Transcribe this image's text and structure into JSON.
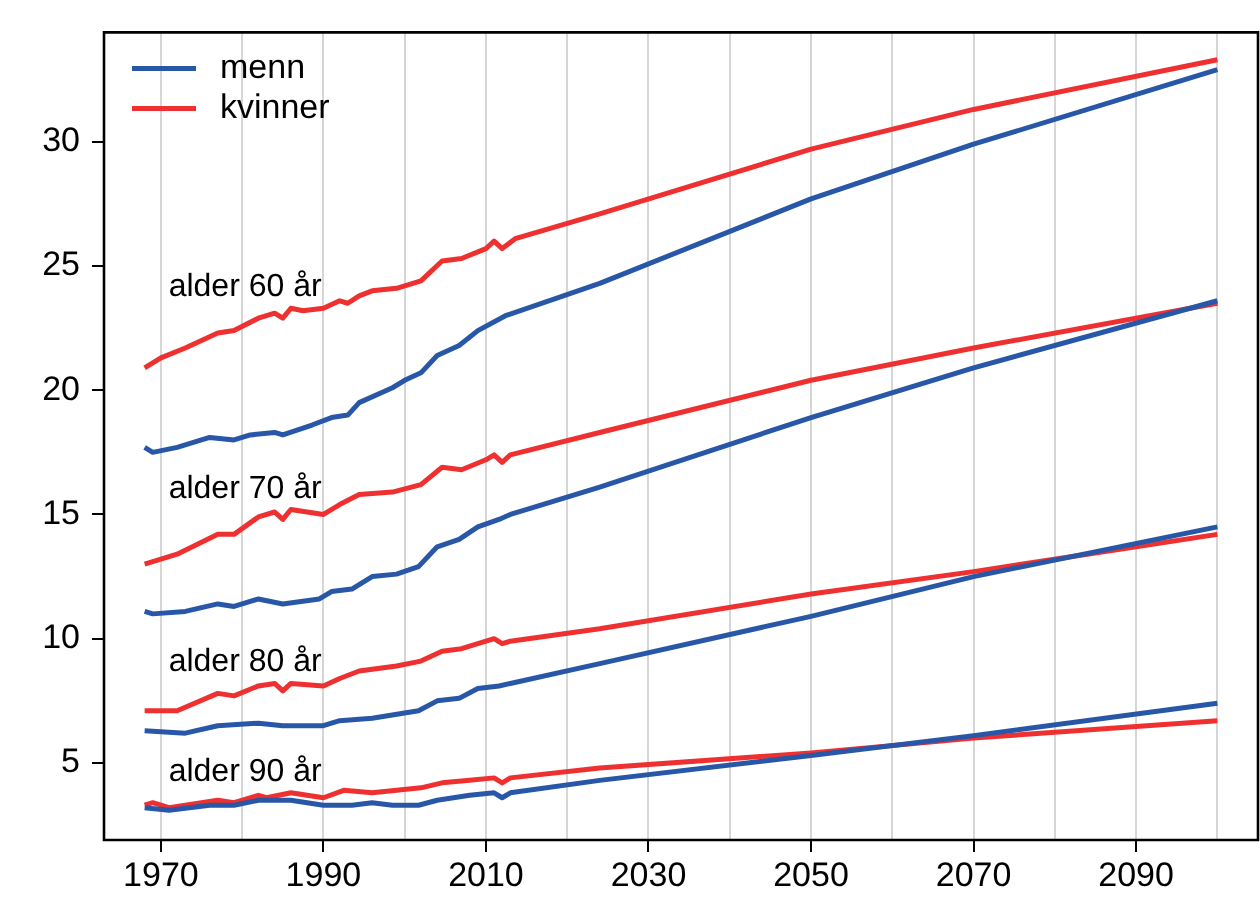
{
  "chart_data": {
    "type": "line",
    "xlim": [
      1963,
      2105
    ],
    "ylim": [
      1.9,
      34.4
    ],
    "xticks": [
      1970,
      {
        "value": 1980,
        "label": null
      },
      1990,
      {
        "value": 2000,
        "label": null
      },
      2010,
      {
        "value": 2020,
        "label": null
      },
      2030,
      {
        "value": 2040,
        "label": null
      },
      2050,
      {
        "value": 2060,
        "label": null
      },
      2070,
      {
        "value": 2080,
        "label": null
      },
      2090,
      {
        "value": 2100,
        "label": null
      }
    ],
    "yticks": [
      5,
      10,
      15,
      20,
      25,
      30
    ],
    "grid": "x",
    "legend": "top left",
    "marker": "none",
    "line_style": "solid",
    "annotations": [
      "alder 60 år",
      "alder 70 år",
      "alder 80 år",
      "alder 90 år"
    ],
    "series": [
      {
        "name": "menn",
        "color": "#2857a8",
        "x": [
          1968,
          1969,
          1972,
          1976,
          1979,
          1981,
          1984,
          1985,
          1988.6,
          1991,
          1993,
          1994.4,
          1998.5,
          2000,
          2002,
          2004,
          2006.7,
          2009,
          2012.4,
          2024,
          2050,
          2070,
          2100
        ],
        "values": [
          17.7,
          17.5,
          17.7,
          18.1,
          18.0,
          18.2,
          18.3,
          18.2,
          18.6,
          18.9,
          19.0,
          19.5,
          20.1,
          20.4,
          20.7,
          21.4,
          21.8,
          22.4,
          23.0,
          24.3,
          27.7,
          29.9,
          32.9
        ]
      },
      {
        "name": "kvinner",
        "color": "#ef3030",
        "x": [
          1968,
          1970,
          1973,
          1977,
          1979,
          1982,
          1984,
          1985,
          1986,
          1987.5,
          1990,
          1992,
          1993,
          1994.4,
          1996,
          1999,
          2002,
          2004.6,
          2007,
          2010,
          2011,
          2012,
          2013.6,
          2024,
          2050,
          2070,
          2100
        ],
        "values": [
          20.9,
          21.3,
          21.7,
          22.3,
          22.4,
          22.9,
          23.1,
          22.9,
          23.3,
          23.2,
          23.3,
          23.6,
          23.5,
          23.8,
          24.0,
          24.1,
          24.4,
          25.2,
          25.3,
          25.7,
          26.0,
          25.7,
          26.1,
          27.1,
          29.7,
          31.3,
          33.3
        ]
      },
      {
        "color": "#2857a8",
        "x": [
          1968,
          1969,
          1973,
          1977,
          1979,
          1982,
          1985,
          1989.5,
          1991,
          1993.5,
          1996,
          1999,
          2001.7,
          2004,
          2006.7,
          2009,
          2011.6,
          2013,
          2024,
          2050,
          2070,
          2100
        ],
        "values": [
          11.1,
          11.0,
          11.1,
          11.4,
          11.3,
          11.6,
          11.4,
          11.6,
          11.9,
          12.0,
          12.5,
          12.6,
          12.9,
          13.7,
          14.0,
          14.5,
          14.8,
          15.0,
          16.1,
          18.9,
          20.9,
          23.6
        ]
      },
      {
        "color": "#ef3030",
        "x": [
          1968,
          1972,
          1977,
          1979,
          1982,
          1984,
          1985,
          1986,
          1990,
          1992,
          1994.4,
          1998.5,
          2002,
          2004.6,
          2007,
          2010,
          2011,
          2012,
          2013,
          2024,
          2050,
          2070,
          2100
        ],
        "values": [
          13.0,
          13.4,
          14.2,
          14.2,
          14.9,
          15.1,
          14.8,
          15.2,
          15.0,
          15.4,
          15.8,
          15.9,
          16.2,
          16.9,
          16.8,
          17.2,
          17.4,
          17.1,
          17.4,
          18.3,
          20.4,
          21.7,
          23.5
        ]
      },
      {
        "color": "#2857a8",
        "x": [
          1968,
          1973,
          1977,
          1982,
          1985,
          1990,
          1992,
          1996,
          2001.7,
          2004,
          2006.7,
          2009,
          2011.6,
          2013,
          2024,
          2050,
          2070,
          2100
        ],
        "values": [
          6.3,
          6.2,
          6.5,
          6.6,
          6.5,
          6.5,
          6.7,
          6.8,
          7.1,
          7.5,
          7.6,
          8.0,
          8.1,
          8.2,
          9.0,
          10.9,
          12.5,
          14.5
        ]
      },
      {
        "color": "#ef3030",
        "x": [
          1968,
          1972,
          1977,
          1979,
          1982,
          1984,
          1985,
          1986,
          1990,
          1992,
          1994.4,
          1999,
          2002,
          2004.6,
          2007,
          2010,
          2011,
          2012,
          2013,
          2024,
          2050,
          2070,
          2100
        ],
        "values": [
          7.1,
          7.1,
          7.8,
          7.7,
          8.1,
          8.2,
          7.9,
          8.2,
          8.1,
          8.4,
          8.7,
          8.9,
          9.1,
          9.5,
          9.6,
          9.9,
          10.0,
          9.8,
          9.9,
          10.4,
          11.8,
          12.7,
          14.2
        ]
      },
      {
        "color": "#2857a8",
        "x": [
          1968,
          1971,
          1976,
          1979,
          1982,
          1984,
          1986,
          1990,
          1993.5,
          1996,
          1998.5,
          2001.7,
          2004,
          2008,
          2011,
          2012,
          2013,
          2024,
          2050,
          2070,
          2100
        ],
        "values": [
          3.2,
          3.1,
          3.3,
          3.3,
          3.5,
          3.5,
          3.5,
          3.3,
          3.3,
          3.4,
          3.3,
          3.3,
          3.5,
          3.7,
          3.8,
          3.6,
          3.8,
          4.3,
          5.3,
          6.1,
          7.4
        ]
      },
      {
        "color": "#ef3030",
        "x": [
          1968,
          1969,
          1971,
          1975,
          1977,
          1979,
          1982,
          1983,
          1986,
          1990,
          1992.5,
          1996,
          1999,
          2002,
          2004.6,
          2008,
          2011,
          2012,
          2013,
          2024,
          2050,
          2070,
          2100
        ],
        "values": [
          3.3,
          3.4,
          3.2,
          3.4,
          3.5,
          3.4,
          3.7,
          3.6,
          3.8,
          3.6,
          3.9,
          3.8,
          3.9,
          4.0,
          4.2,
          4.3,
          4.4,
          4.2,
          4.4,
          4.8,
          5.4,
          6.0,
          6.7
        ]
      }
    ]
  }
}
